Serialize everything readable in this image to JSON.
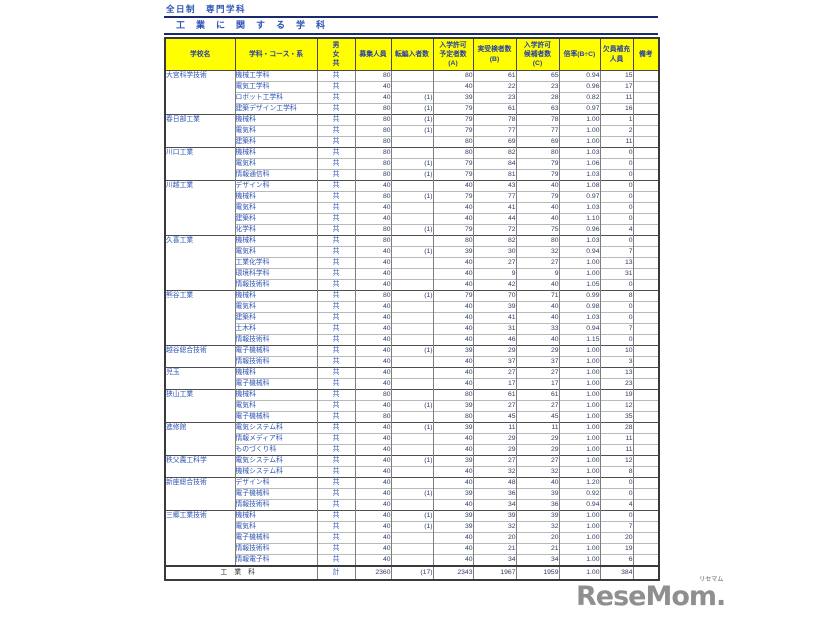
{
  "page": {
    "title_top": "全日制　専門学科",
    "section_title": "工業に関する学科"
  },
  "colors": {
    "header_bg": "#ffff00",
    "label_blue": "#2d53b5",
    "number_navy": "#2e3a63",
    "logo_gray": "#8f8f8f"
  },
  "table": {
    "columns": [
      {
        "key": "school",
        "label": "学校名"
      },
      {
        "key": "dept",
        "label": "学科・コース・系"
      },
      {
        "key": "gender",
        "label": "男\n女\n共"
      },
      {
        "key": "recruit",
        "label": "募集人員"
      },
      {
        "key": "transfer",
        "label": "転編入者数"
      },
      {
        "key": "planned",
        "label": "入学許可\n予定者数\n(A)"
      },
      {
        "key": "examinees",
        "label": "実受検者数\n(B)"
      },
      {
        "key": "candidates",
        "label": "入学許可\n候補者数\n(C)"
      },
      {
        "key": "ratio",
        "label": "倍率(B÷C)"
      },
      {
        "key": "vacancy",
        "label": "欠員補充\n人員"
      },
      {
        "key": "remarks",
        "label": "備考"
      }
    ],
    "row_value_order": [
      "dept",
      "gender",
      "recruit",
      "transfer",
      "planned",
      "examinees",
      "candidates",
      "ratio",
      "vacancy",
      "remarks"
    ],
    "schools": [
      {
        "name": "大宮科学技術",
        "rows": [
          [
            "機械工学科",
            "共",
            "80",
            "",
            "80",
            "61",
            "65",
            "0.94",
            "15",
            ""
          ],
          [
            "電気工学科",
            "共",
            "40",
            "",
            "40",
            "22",
            "23",
            "0.96",
            "17",
            ""
          ],
          [
            "ロボット工学科",
            "共",
            "40",
            "(1)",
            "39",
            "23",
            "28",
            "0.82",
            "11",
            ""
          ],
          [
            "建築デザイン工学科",
            "共",
            "80",
            "(1)",
            "79",
            "61",
            "63",
            "0.97",
            "16",
            ""
          ]
        ]
      },
      {
        "name": "春日部工業",
        "rows": [
          [
            "機械科",
            "共",
            "80",
            "(1)",
            "79",
            "78",
            "78",
            "1.00",
            "1",
            ""
          ],
          [
            "電気科",
            "共",
            "80",
            "(1)",
            "79",
            "77",
            "77",
            "1.00",
            "2",
            ""
          ],
          [
            "建築科",
            "共",
            "80",
            "",
            "80",
            "69",
            "69",
            "1.00",
            "11",
            ""
          ]
        ]
      },
      {
        "name": "川口工業",
        "rows": [
          [
            "機械科",
            "共",
            "80",
            "",
            "80",
            "82",
            "80",
            "1.03",
            "0",
            ""
          ],
          [
            "電気科",
            "共",
            "80",
            "(1)",
            "79",
            "84",
            "79",
            "1.06",
            "0",
            ""
          ],
          [
            "情報通信科",
            "共",
            "80",
            "(1)",
            "79",
            "81",
            "79",
            "1.03",
            "0",
            ""
          ]
        ]
      },
      {
        "name": "川越工業",
        "rows": [
          [
            "デザイン科",
            "共",
            "40",
            "",
            "40",
            "43",
            "40",
            "1.08",
            "0",
            ""
          ],
          [
            "機械科",
            "共",
            "80",
            "(1)",
            "79",
            "77",
            "79",
            "0.97",
            "0",
            ""
          ],
          [
            "電気科",
            "共",
            "40",
            "",
            "40",
            "41",
            "40",
            "1.03",
            "0",
            ""
          ],
          [
            "建築科",
            "共",
            "40",
            "",
            "40",
            "44",
            "40",
            "1.10",
            "0",
            ""
          ],
          [
            "化学科",
            "共",
            "80",
            "(1)",
            "79",
            "72",
            "75",
            "0.96",
            "4",
            ""
          ]
        ]
      },
      {
        "name": "久喜工業",
        "rows": [
          [
            "機械科",
            "共",
            "80",
            "",
            "80",
            "82",
            "80",
            "1.03",
            "0",
            ""
          ],
          [
            "電気科",
            "共",
            "40",
            "(1)",
            "39",
            "30",
            "32",
            "0.94",
            "7",
            ""
          ],
          [
            "工業化学科",
            "共",
            "40",
            "",
            "40",
            "27",
            "27",
            "1.00",
            "13",
            ""
          ],
          [
            "環境科学科",
            "共",
            "40",
            "",
            "40",
            "9",
            "9",
            "1.00",
            "31",
            ""
          ],
          [
            "情報技術科",
            "共",
            "40",
            "",
            "40",
            "42",
            "40",
            "1.05",
            "0",
            ""
          ]
        ]
      },
      {
        "name": "熊谷工業",
        "rows": [
          [
            "機械科",
            "共",
            "80",
            "(1)",
            "79",
            "70",
            "71",
            "0.99",
            "8",
            ""
          ],
          [
            "電気科",
            "共",
            "40",
            "",
            "40",
            "39",
            "40",
            "0.98",
            "0",
            ""
          ],
          [
            "建築科",
            "共",
            "40",
            "",
            "40",
            "41",
            "40",
            "1.03",
            "0",
            ""
          ],
          [
            "土木科",
            "共",
            "40",
            "",
            "40",
            "31",
            "33",
            "0.94",
            "7",
            ""
          ],
          [
            "情報技術科",
            "共",
            "40",
            "",
            "40",
            "46",
            "40",
            "1.15",
            "0",
            ""
          ]
        ]
      },
      {
        "name": "越谷総合技術",
        "rows": [
          [
            "電子機械科",
            "共",
            "40",
            "(1)",
            "39",
            "29",
            "29",
            "1.00",
            "10",
            ""
          ],
          [
            "情報技術科",
            "共",
            "40",
            "",
            "40",
            "37",
            "37",
            "1.00",
            "3",
            ""
          ]
        ]
      },
      {
        "name": "児玉",
        "rows": [
          [
            "機械科",
            "共",
            "40",
            "",
            "40",
            "27",
            "27",
            "1.00",
            "13",
            ""
          ],
          [
            "電子機械科",
            "共",
            "40",
            "",
            "40",
            "17",
            "17",
            "1.00",
            "23",
            ""
          ]
        ]
      },
      {
        "name": "狭山工業",
        "rows": [
          [
            "機械科",
            "共",
            "80",
            "",
            "80",
            "61",
            "61",
            "1.00",
            "19",
            ""
          ],
          [
            "電気科",
            "共",
            "40",
            "(1)",
            "39",
            "27",
            "27",
            "1.00",
            "12",
            ""
          ],
          [
            "電子機械科",
            "共",
            "80",
            "",
            "80",
            "45",
            "45",
            "1.00",
            "35",
            ""
          ]
        ]
      },
      {
        "name": "進修館",
        "rows": [
          [
            "電気システム科",
            "共",
            "40",
            "(1)",
            "39",
            "11",
            "11",
            "1.00",
            "28",
            ""
          ],
          [
            "情報メディア科",
            "共",
            "40",
            "",
            "40",
            "29",
            "29",
            "1.00",
            "11",
            ""
          ],
          [
            "ものづくり科",
            "共",
            "40",
            "",
            "40",
            "29",
            "29",
            "1.00",
            "11",
            ""
          ]
        ]
      },
      {
        "name": "秩父農工科学",
        "rows": [
          [
            "電気システム科",
            "共",
            "40",
            "(1)",
            "39",
            "27",
            "27",
            "1.00",
            "12",
            ""
          ],
          [
            "機械システム科",
            "共",
            "40",
            "",
            "40",
            "32",
            "32",
            "1.00",
            "8",
            ""
          ]
        ]
      },
      {
        "name": "新座総合技術",
        "rows": [
          [
            "デザイン科",
            "共",
            "40",
            "",
            "40",
            "48",
            "40",
            "1.20",
            "0",
            ""
          ],
          [
            "電子機械科",
            "共",
            "40",
            "(1)",
            "39",
            "36",
            "39",
            "0.92",
            "0",
            ""
          ],
          [
            "情報技術科",
            "共",
            "40",
            "",
            "40",
            "34",
            "36",
            "0.94",
            "4",
            ""
          ]
        ]
      },
      {
        "name": "三郷工業技術",
        "rows": [
          [
            "機械科",
            "共",
            "40",
            "(1)",
            "39",
            "39",
            "39",
            "1.00",
            "0",
            ""
          ],
          [
            "電気科",
            "共",
            "40",
            "(1)",
            "39",
            "32",
            "32",
            "1.00",
            "7",
            ""
          ],
          [
            "電子機械科",
            "共",
            "40",
            "",
            "40",
            "20",
            "20",
            "1.00",
            "20",
            ""
          ],
          [
            "情報技術科",
            "共",
            "40",
            "",
            "40",
            "21",
            "21",
            "1.00",
            "19",
            ""
          ],
          [
            "情報電子科",
            "共",
            "40",
            "",
            "40",
            "34",
            "34",
            "1.00",
            "6",
            ""
          ]
        ]
      }
    ],
    "total_row": {
      "label": "工業科",
      "gender": "計",
      "values": [
        "2360",
        "(17)",
        "2343",
        "1967",
        "1959",
        "1.00",
        "384",
        ""
      ]
    }
  },
  "logo": {
    "rese": "Rese",
    "mom": "Mom.",
    "ruby": "リセマム"
  }
}
